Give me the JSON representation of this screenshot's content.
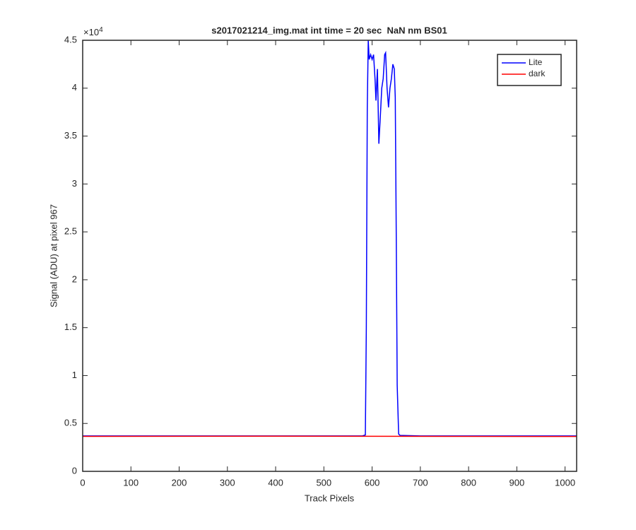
{
  "chart_data": {
    "type": "line",
    "title": "s2017021214_img.mat int time = 20 sec  NaN nm BS01",
    "x_label": "Track Pixels",
    "y_label": "Signal (ADU) at pixel 967",
    "y_multiplier": {
      "base": "×10",
      "exponent": "4"
    },
    "xlim": [
      0,
      1024
    ],
    "xticks": [
      0,
      100,
      200,
      300,
      400,
      500,
      600,
      700,
      800,
      900,
      1000
    ],
    "ylim": [
      0,
      4.5
    ],
    "yticks": [
      0,
      0.5,
      1,
      1.5,
      2,
      2.5,
      3,
      3.5,
      4,
      4.5
    ],
    "legend": "northeast",
    "series": [
      {
        "name": "Lite",
        "color": "#0000ff",
        "x": [
          0,
          580,
          586,
          588,
          590,
          592,
          594,
          597,
          600,
          603,
          606,
          608,
          611,
          614,
          617,
          620,
          623,
          626,
          628,
          631,
          634,
          637,
          640,
          643,
          646,
          648,
          650,
          652,
          655,
          658,
          700,
          1024
        ],
        "values": [
          0.37,
          0.37,
          0.38,
          1.5,
          3.8,
          4.5,
          4.3,
          4.35,
          4.3,
          4.35,
          4.1,
          3.87,
          4.2,
          3.42,
          3.7,
          4.0,
          4.1,
          4.35,
          4.37,
          4.0,
          3.8,
          4.0,
          4.1,
          4.25,
          4.2,
          3.9,
          2.5,
          0.9,
          0.39,
          0.375,
          0.37,
          0.37
        ]
      },
      {
        "name": "dark",
        "color": "#ff0000",
        "x": [
          0,
          200,
          400,
          600,
          800,
          1024
        ],
        "values": [
          0.365,
          0.366,
          0.367,
          0.366,
          0.365,
          0.364
        ]
      }
    ]
  }
}
